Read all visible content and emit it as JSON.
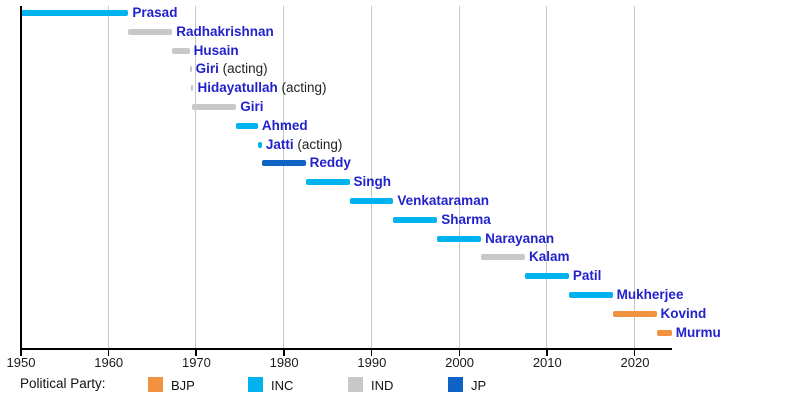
{
  "chart_data": {
    "type": "bar",
    "variant": "horizontal-timeline-gantt",
    "title": "",
    "xlabel": "",
    "ylabel": "",
    "grid": true,
    "axis": {
      "start": 1950,
      "end": 2024.3,
      "ticks": [
        1950,
        1960,
        1970,
        1980,
        1990,
        2000,
        2010,
        2020
      ]
    },
    "colors": {
      "BJP": "#F0923F",
      "INC": "#00B2EE",
      "IND": "#C8C8C8",
      "JP": "#0D64C4",
      "name_link": "#2222CC",
      "suffix_text": "#222222",
      "grid": "#C6C6C6",
      "axis": "#000000"
    },
    "legend": {
      "title": "Political Party:",
      "position": "bottom",
      "items": [
        {
          "label": "BJP",
          "party": "BJP"
        },
        {
          "label": "INC",
          "party": "INC"
        },
        {
          "label": "IND",
          "party": "IND"
        },
        {
          "label": "JP",
          "party": "JP"
        }
      ]
    },
    "bars": [
      {
        "name": "Prasad",
        "suffix": "",
        "party": "INC",
        "start": 1950.07,
        "end": 1962.36
      },
      {
        "name": "Radhakrishnan",
        "suffix": "",
        "party": "IND",
        "start": 1962.36,
        "end": 1967.36
      },
      {
        "name": "Husain",
        "suffix": "",
        "party": "IND",
        "start": 1967.36,
        "end": 1969.34
      },
      {
        "name": "Giri",
        "suffix": " (acting)",
        "party": "IND",
        "start": 1969.34,
        "end": 1969.55
      },
      {
        "name": "Hidayatullah",
        "suffix": " (acting)",
        "party": "IND",
        "start": 1969.55,
        "end": 1969.65
      },
      {
        "name": "Giri",
        "suffix": "",
        "party": "IND",
        "start": 1969.65,
        "end": 1974.65
      },
      {
        "name": "Ahmed",
        "suffix": "",
        "party": "INC",
        "start": 1974.65,
        "end": 1977.12
      },
      {
        "name": "Jatti",
        "suffix": " (acting)",
        "party": "INC",
        "start": 1977.12,
        "end": 1977.57
      },
      {
        "name": "Reddy",
        "suffix": "",
        "party": "JP",
        "start": 1977.57,
        "end": 1982.57
      },
      {
        "name": "Singh",
        "suffix": "",
        "party": "INC",
        "start": 1982.57,
        "end": 1987.57
      },
      {
        "name": "Venkataraman",
        "suffix": "",
        "party": "INC",
        "start": 1987.57,
        "end": 1992.57
      },
      {
        "name": "Sharma",
        "suffix": "",
        "party": "INC",
        "start": 1992.57,
        "end": 1997.57
      },
      {
        "name": "Narayanan",
        "suffix": "",
        "party": "INC",
        "start": 1997.57,
        "end": 2002.57
      },
      {
        "name": "Kalam",
        "suffix": "",
        "party": "IND",
        "start": 2002.57,
        "end": 2007.57
      },
      {
        "name": "Patil",
        "suffix": "",
        "party": "INC",
        "start": 2007.57,
        "end": 2012.57
      },
      {
        "name": "Mukherjee",
        "suffix": "",
        "party": "INC",
        "start": 2012.57,
        "end": 2017.57
      },
      {
        "name": "Kovind",
        "suffix": "",
        "party": "BJP",
        "start": 2017.57,
        "end": 2022.57
      },
      {
        "name": "Murmu",
        "suffix": "",
        "party": "BJP",
        "start": 2022.57,
        "end": 2024.3
      }
    ]
  }
}
